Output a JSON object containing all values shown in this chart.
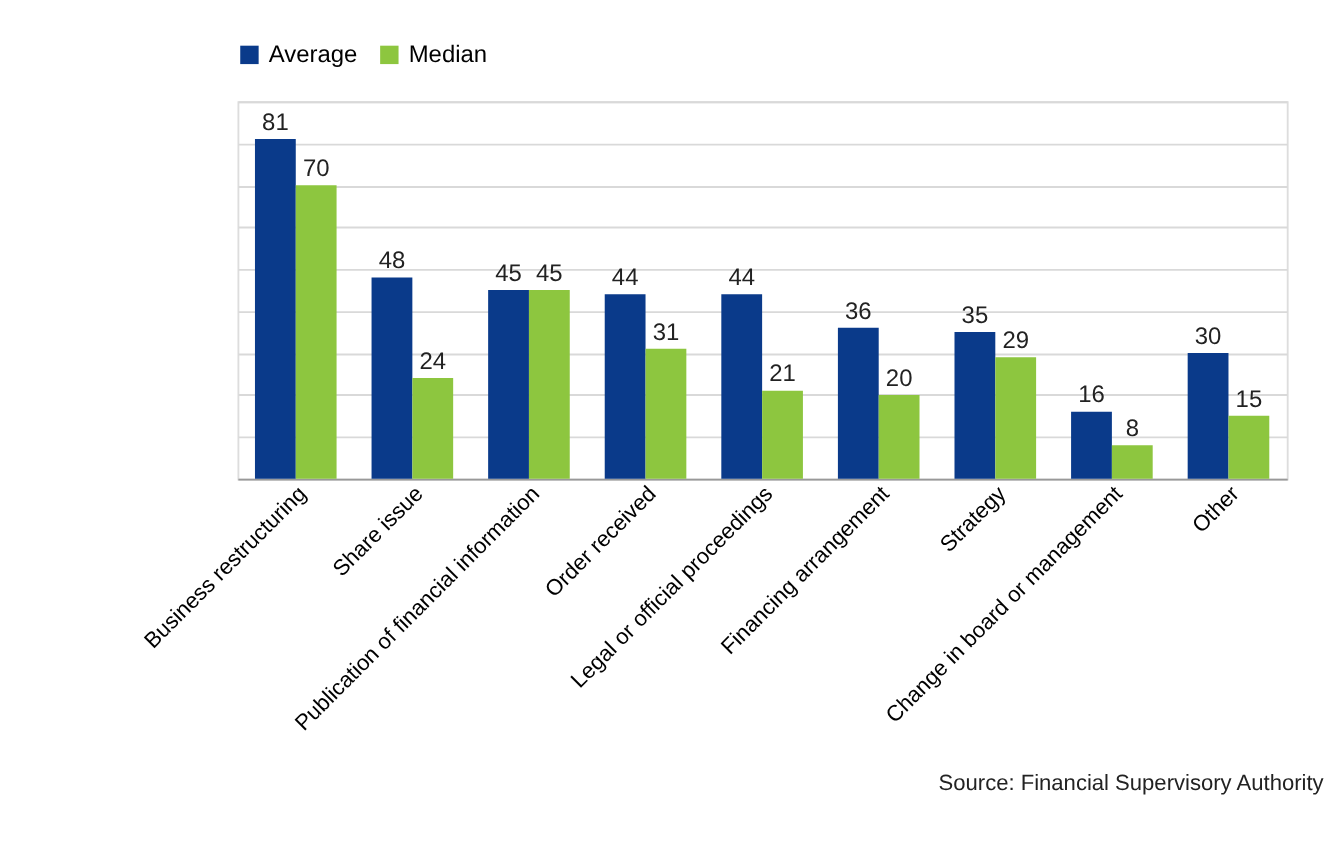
{
  "chart_data": {
    "type": "bar",
    "categories": [
      "Business restructuring",
      "Share issue",
      "Publication of financial information",
      "Order received",
      "Legal or official proceedings",
      "Financing arrangement",
      "Strategy",
      "Change in board or management",
      "Other"
    ],
    "series": [
      {
        "name": "Average",
        "color": "#0a3a8a",
        "values": [
          81,
          48,
          45,
          44,
          44,
          36,
          35,
          16,
          30
        ]
      },
      {
        "name": "Median",
        "color": "#8dc63f",
        "values": [
          70,
          24,
          45,
          31,
          21,
          20,
          29,
          8,
          15
        ]
      }
    ],
    "ylim": [
      0,
      90
    ],
    "yticks": [
      {
        "value": 0,
        "label": null
      },
      {
        "value": 10,
        "label": null
      },
      {
        "value": 20,
        "label": null
      },
      {
        "value": 30,
        "label": null
      },
      {
        "value": 40,
        "label": null
      },
      {
        "value": 50,
        "label": null
      },
      {
        "value": 60,
        "label": null
      },
      {
        "value": 70,
        "label": null
      },
      {
        "value": 80,
        "label": null
      },
      {
        "value": 90,
        "label": null
      }
    ],
    "grid": "y",
    "legend": "top",
    "tick_labels": "x",
    "data_labels": true,
    "annotations": [
      "Source: Financial Supervisory Authority"
    ]
  }
}
